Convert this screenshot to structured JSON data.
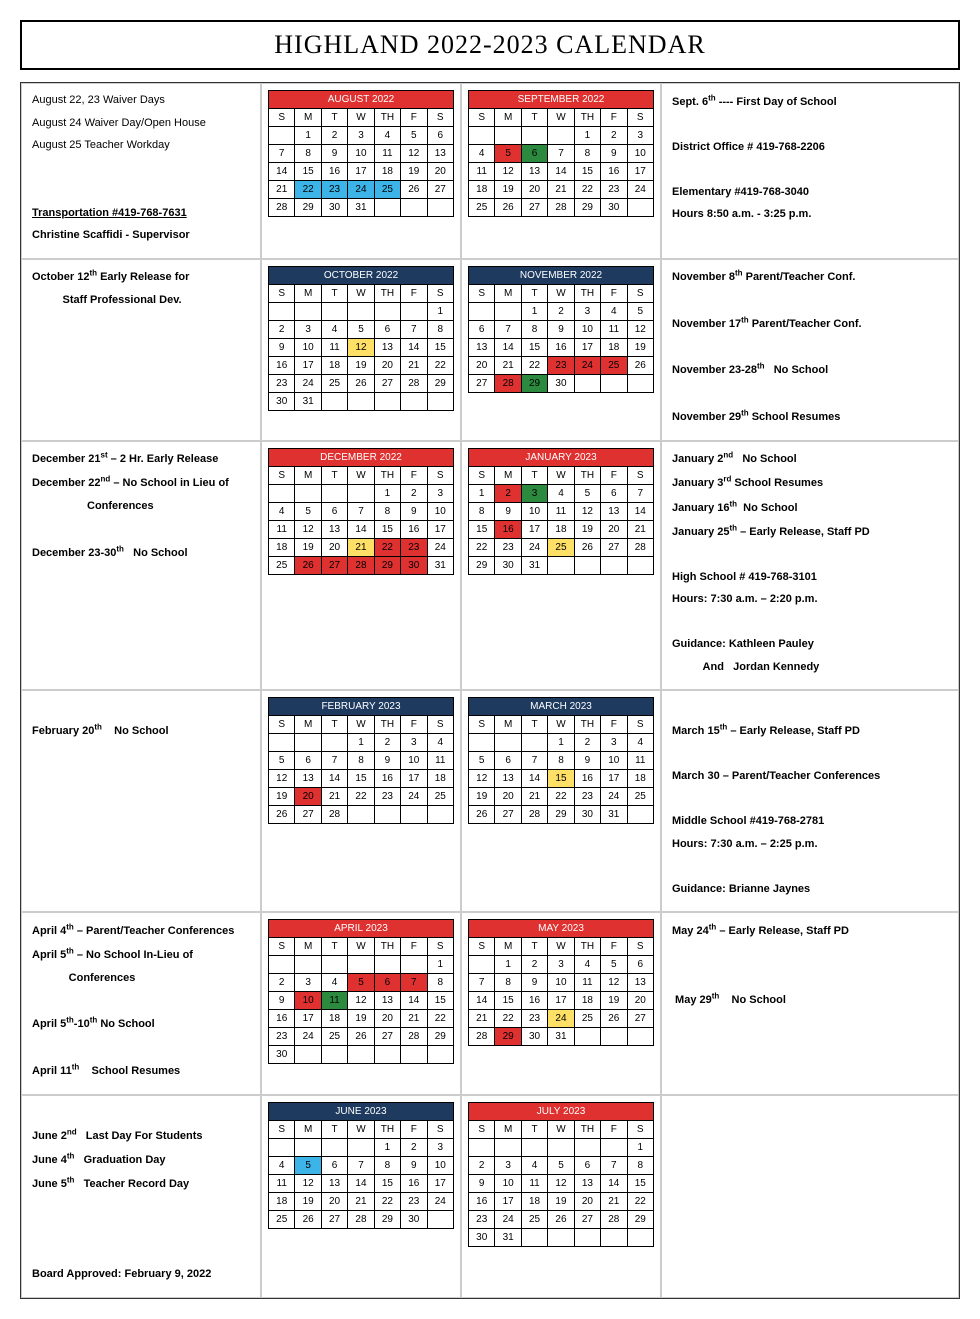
{
  "title": "HIGHLAND  2022-2023 CALENDAR",
  "dayHeaders": [
    "S",
    "M",
    "T",
    "W",
    "TH",
    "F",
    "S"
  ],
  "colors": {
    "red": "#e03131",
    "blue": "#1e3a5f",
    "green": "#2b8a3e",
    "cyan": "#3db4e8",
    "yellow": "#ffe066"
  },
  "rows": [
    {
      "leftNotes": [
        {
          "text": "August 22, 23  Waiver Days"
        },
        {
          "text": "August 24 Waiver Day/Open House"
        },
        {
          "text": "August 25  Teacher Workday"
        },
        {
          "text": ""
        },
        {
          "text": ""
        },
        {
          "html": "<span class='underline'><b>Transportation #419-768-7631</b></span>"
        },
        {
          "html": "<b>Christine Scaffidi - Supervisor</b>"
        }
      ],
      "cal1": {
        "title": "AUGUST 2022",
        "headerColor": "red",
        "startDay": 1,
        "daysInMonth": 31,
        "marks": {
          "22": "b",
          "23": "b",
          "24": "b",
          "25": "b"
        }
      },
      "cal2": {
        "title": "SEPTEMBER 2022",
        "headerColor": "red",
        "startDay": 4,
        "daysInMonth": 30,
        "marks": {
          "5": "r",
          "6": "g"
        }
      },
      "rightNotes": [
        {
          "html": "<b>Sept. 6<sup>th</sup> ---- First Day of School</b>"
        },
        {
          "text": ""
        },
        {
          "html": "<b>District Office # 419-768-2206</b>"
        },
        {
          "text": ""
        },
        {
          "html": "<b>Elementary #419-768-3040</b>"
        },
        {
          "html": "<b>Hours  8:50 a.m. - 3:25 p.m.</b>"
        }
      ]
    },
    {
      "leftNotes": [
        {
          "html": "<b>October 12<sup>th</sup>  Early Release for</b>"
        },
        {
          "html": "<b>&nbsp;&nbsp;&nbsp;&nbsp;&nbsp;&nbsp;&nbsp;&nbsp;&nbsp;&nbsp;Staff Professional Dev.</b>"
        }
      ],
      "cal1": {
        "title": "OCTOBER 2022",
        "headerColor": "blue",
        "startDay": 6,
        "daysInMonth": 31,
        "marks": {
          "12": "y"
        }
      },
      "cal2": {
        "title": "NOVEMBER 2022",
        "headerColor": "blue",
        "startDay": 2,
        "daysInMonth": 30,
        "marks": {
          "23": "r",
          "24": "r",
          "25": "r",
          "28": "r",
          "29": "g"
        }
      },
      "rightNotes": [
        {
          "html": "<b>November 8<sup>th</sup> Parent/Teacher Conf.</b>"
        },
        {
          "text": ""
        },
        {
          "html": "<b>November 17<sup>th</sup> Parent/Teacher Conf.</b>"
        },
        {
          "text": ""
        },
        {
          "html": "<b>November 23-28<sup>th</sup>&nbsp;&nbsp;&nbsp;No School</b>"
        },
        {
          "text": ""
        },
        {
          "html": "<b>November 29<sup>th</sup>  School Resumes</b>"
        }
      ]
    },
    {
      "leftNotes": [
        {
          "html": "<b>December 21<sup>st</sup> – 2 Hr. Early Release</b>"
        },
        {
          "html": "<b>December 22<sup>nd</sup> – No School in Lieu of</b>"
        },
        {
          "html": "<b>&nbsp;&nbsp;&nbsp;&nbsp;&nbsp;&nbsp;&nbsp;&nbsp;&nbsp;&nbsp;&nbsp;&nbsp;&nbsp;&nbsp;&nbsp;&nbsp;&nbsp;&nbsp;Conferences</b>"
        },
        {
          "text": ""
        },
        {
          "html": "<b>December 23-30<sup>th</sup>&nbsp;&nbsp;&nbsp;No School</b>"
        }
      ],
      "cal1": {
        "title": "DECEMBER 2022",
        "headerColor": "red",
        "startDay": 4,
        "daysInMonth": 31,
        "marks": {
          "21": "y",
          "22": "r",
          "23": "r",
          "26": "r",
          "27": "r",
          "28": "r",
          "29": "r",
          "30": "r"
        }
      },
      "cal2": {
        "title": "JANUARY 2023",
        "headerColor": "red",
        "startDay": 0,
        "daysInMonth": 31,
        "marks": {
          "2": "r",
          "3": "g",
          "16": "r",
          "25": "y"
        },
        "blankCells": [
          "16-1"
        ]
      },
      "rightNotes": [
        {
          "html": "<b>January 2<sup>nd</sup>&nbsp;&nbsp;&nbsp;No School</b>"
        },
        {
          "html": "<b>January 3<sup>rd</sup> School Resumes</b>"
        },
        {
          "html": "<b>January 16<sup>th</sup>&nbsp;&nbsp;No School</b>"
        },
        {
          "html": "<b>January 25<sup>th</sup> – Early Release, Staff PD</b>"
        },
        {
          "text": ""
        },
        {
          "html": "<b>High School # 419-768-3101</b>"
        },
        {
          "html": "<b>Hours: 7:30 a.m. – 2:20 p.m.</b>"
        },
        {
          "text": ""
        },
        {
          "html": "<b>Guidance: Kathleen Pauley</b>"
        },
        {
          "html": "<b>&nbsp;&nbsp;&nbsp;&nbsp;&nbsp;&nbsp;&nbsp;&nbsp;&nbsp;&nbsp;And&nbsp;&nbsp;&nbsp;Jordan Kennedy</b>"
        }
      ]
    },
    {
      "leftNotes": [
        {
          "text": ""
        },
        {
          "html": "<b>February 20<sup>th</sup>&nbsp;&nbsp;&nbsp;&nbsp;No School</b>"
        }
      ],
      "cal1": {
        "title": "FEBRUARY 2023",
        "headerColor": "blue",
        "startDay": 3,
        "daysInMonth": 28,
        "marks": {
          "20": "r"
        }
      },
      "cal2": {
        "title": "MARCH 2023",
        "headerColor": "blue",
        "startDay": 3,
        "daysInMonth": 31,
        "marks": {
          "15": "y"
        }
      },
      "rightNotes": [
        {
          "text": ""
        },
        {
          "html": "<b>March 15<sup>th</sup> – Early Release, Staff PD</b>"
        },
        {
          "text": ""
        },
        {
          "html": "<b>March 30 – Parent/Teacher Conferences</b>"
        },
        {
          "text": ""
        },
        {
          "html": "<b>Middle School  #419-768-2781</b>"
        },
        {
          "html": "<b>Hours: 7:30 a.m. – 2:25 p.m.</b>"
        },
        {
          "text": ""
        },
        {
          "html": "<b>Guidance: Brianne Jaynes</b>"
        }
      ]
    },
    {
      "leftNotes": [
        {
          "html": "<b>April 4<sup>th</sup> – Parent/Teacher Conferences</b>"
        },
        {
          "html": "<b>April 5<sup>th</sup> – No School In-Lieu of</b>"
        },
        {
          "html": "<b>&nbsp;&nbsp;&nbsp;&nbsp;&nbsp;&nbsp;&nbsp;&nbsp;&nbsp;&nbsp;&nbsp;&nbsp;Conferences</b>"
        },
        {
          "text": ""
        },
        {
          "html": "<b>April 5<sup>th</sup>-10<sup>th</sup> No School</b>"
        },
        {
          "text": ""
        },
        {
          "html": "<b>April 11<sup>th</sup>&nbsp;&nbsp;&nbsp;&nbsp;School Resumes</b>"
        }
      ],
      "cal1": {
        "title": "APRIL 2023",
        "headerColor": "red",
        "startDay": 6,
        "daysInMonth": 30,
        "marks": {
          "5": "r",
          "6": "r",
          "7": "r",
          "10": "r",
          "11": "g"
        }
      },
      "cal2": {
        "title": "MAY 2023",
        "headerColor": "red",
        "startDay": 1,
        "daysInMonth": 31,
        "marks": {
          "24": "y",
          "29": "r"
        }
      },
      "rightNotes": [
        {
          "html": "<b>May 24<sup>th</sup> – Early Release, Staff PD</b>"
        },
        {
          "text": ""
        },
        {
          "text": ""
        },
        {
          "html": "<b>&nbsp;May 29<sup>th</sup>&nbsp;&nbsp;&nbsp;&nbsp;No School</b>"
        }
      ]
    },
    {
      "leftNotes": [
        {
          "text": ""
        },
        {
          "html": "<b>June 2<sup>nd</sup>&nbsp;&nbsp;&nbsp;Last Day For Students</b>"
        },
        {
          "html": "<b>June 4<sup>th</sup>&nbsp;&nbsp;&nbsp;Graduation Day</b>"
        },
        {
          "html": "<b>June 5<sup>th</sup>&nbsp;&nbsp;&nbsp;Teacher Record Day</b>"
        },
        {
          "text": ""
        },
        {
          "text": ""
        },
        {
          "text": ""
        },
        {
          "html": "<b>Board Approved: February 9, 2022</b>"
        }
      ],
      "cal1": {
        "title": "JUNE 2023",
        "headerColor": "blue",
        "startDay": 4,
        "daysInMonth": 30,
        "marks": {
          "5": "b"
        }
      },
      "cal2": {
        "title": "JULY 2023",
        "headerColor": "red",
        "startDay": 6,
        "daysInMonth": 31,
        "marks": {}
      },
      "rightNotes": []
    }
  ]
}
